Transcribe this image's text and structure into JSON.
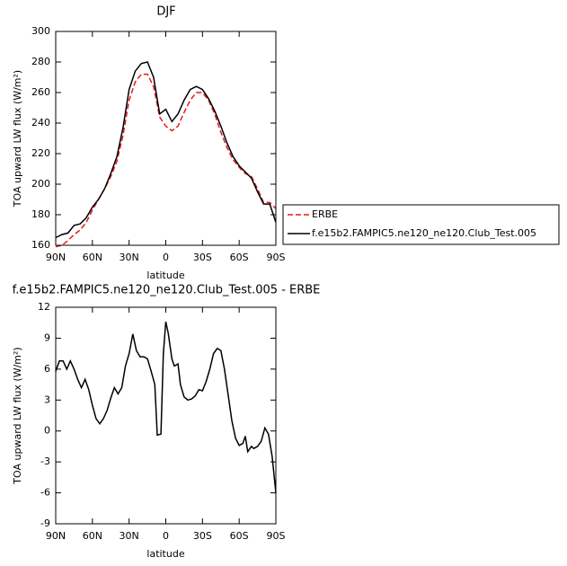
{
  "chart_data": [
    {
      "type": "line",
      "title": "DJF",
      "xlabel": "latitude",
      "ylabel": "TOA upward LW flux (W/m²)",
      "x": [
        90,
        85,
        80,
        75,
        70,
        65,
        60,
        55,
        50,
        45,
        40,
        35,
        30,
        25,
        20,
        15,
        10,
        5,
        0,
        -5,
        -10,
        -15,
        -20,
        -25,
        -30,
        -35,
        -40,
        -45,
        -50,
        -55,
        -60,
        -65,
        -70,
        -75,
        -80,
        -85,
        -90
      ],
      "series": [
        {
          "name": "ERBE",
          "color": "#e41a1c",
          "linestyle": "dashed",
          "values": [
            159,
            160,
            163,
            167,
            170,
            175,
            183,
            190,
            197,
            205,
            215,
            232,
            255,
            267,
            272,
            272,
            264,
            244,
            238,
            235,
            238,
            247,
            255,
            260,
            260,
            255,
            246,
            234,
            224,
            216,
            211,
            207,
            205,
            197,
            188,
            188,
            184
          ]
        },
        {
          "name": "f.e15b2.FAMPIC5.ne120_ne120.Club_Test.005",
          "color": "#000000",
          "linestyle": "solid",
          "values": [
            165,
            167,
            168,
            173,
            174,
            178,
            185,
            190,
            197,
            207,
            218,
            237,
            262,
            274,
            279,
            280,
            270,
            246,
            249,
            241,
            246,
            255,
            262,
            264,
            262,
            256,
            248,
            238,
            227,
            218,
            212,
            208,
            204,
            195,
            187,
            187,
            175
          ]
        }
      ],
      "xlim": [
        90,
        -90
      ],
      "xticks": [
        {
          "value": 90,
          "label": "90N"
        },
        {
          "value": 60,
          "label": "60N"
        },
        {
          "value": 30,
          "label": "30N"
        },
        0,
        {
          "value": -30,
          "label": "30S"
        },
        {
          "value": -60,
          "label": "60S"
        },
        {
          "value": -90,
          "label": "90S"
        }
      ],
      "ylim": [
        160,
        300
      ],
      "yticks": [
        160,
        180,
        200,
        220,
        240,
        260,
        280,
        300
      ],
      "legend": "right"
    },
    {
      "type": "line",
      "title": "f.e15b2.FAMPIC5.ne120_ne120.Club_Test.005 - ERBE",
      "xlabel": "latitude",
      "ylabel": "TOA upward LW flux (W/m²)",
      "x": [
        90,
        87,
        84,
        81,
        78,
        75,
        72,
        69,
        66,
        63,
        60,
        57,
        54,
        51,
        48,
        45,
        42,
        39,
        36,
        33,
        30,
        27,
        24,
        21,
        18,
        15,
        12,
        9,
        7,
        4,
        2,
        0,
        -2,
        -5,
        -7,
        -10,
        -12,
        -15,
        -18,
        -21,
        -24,
        -27,
        -30,
        -33,
        -36,
        -39,
        -42,
        -45,
        -48,
        -51,
        -54,
        -57,
        -60,
        -63,
        -65,
        -67,
        -70,
        -72,
        -75,
        -78,
        -81,
        -84,
        -87,
        -90
      ],
      "series": [
        {
          "color": "#000000",
          "linestyle": "solid",
          "values": [
            5.8,
            6.8,
            6.8,
            6.0,
            6.8,
            6.0,
            5.0,
            4.2,
            5.0,
            4.0,
            2.5,
            1.2,
            0.7,
            1.2,
            2.0,
            3.2,
            4.2,
            3.6,
            4.2,
            6.3,
            7.5,
            9.4,
            7.8,
            7.2,
            7.2,
            7.0,
            5.8,
            4.5,
            -0.4,
            -0.3,
            7.5,
            10.6,
            9.5,
            7.0,
            6.3,
            6.5,
            4.5,
            3.3,
            3.0,
            3.1,
            3.4,
            4.0,
            3.9,
            4.8,
            6.0,
            7.5,
            8.0,
            7.8,
            6.0,
            3.5,
            1.0,
            -0.7,
            -1.4,
            -1.2,
            -0.5,
            -2.0,
            -1.5,
            -1.7,
            -1.5,
            -1.0,
            0.3,
            -0.3,
            -2.5,
            -6.0
          ]
        }
      ],
      "xlim": [
        90,
        -90
      ],
      "xticks": [
        {
          "value": 90,
          "label": "90N"
        },
        {
          "value": 60,
          "label": "60N"
        },
        {
          "value": 30,
          "label": "30N"
        },
        0,
        {
          "value": -30,
          "label": "30S"
        },
        {
          "value": -60,
          "label": "60S"
        },
        {
          "value": -90,
          "label": "90S"
        }
      ],
      "ylim": [
        -9,
        12
      ],
      "yticks": [
        -9,
        -6,
        -3,
        0,
        3,
        6,
        9,
        12
      ]
    }
  ]
}
